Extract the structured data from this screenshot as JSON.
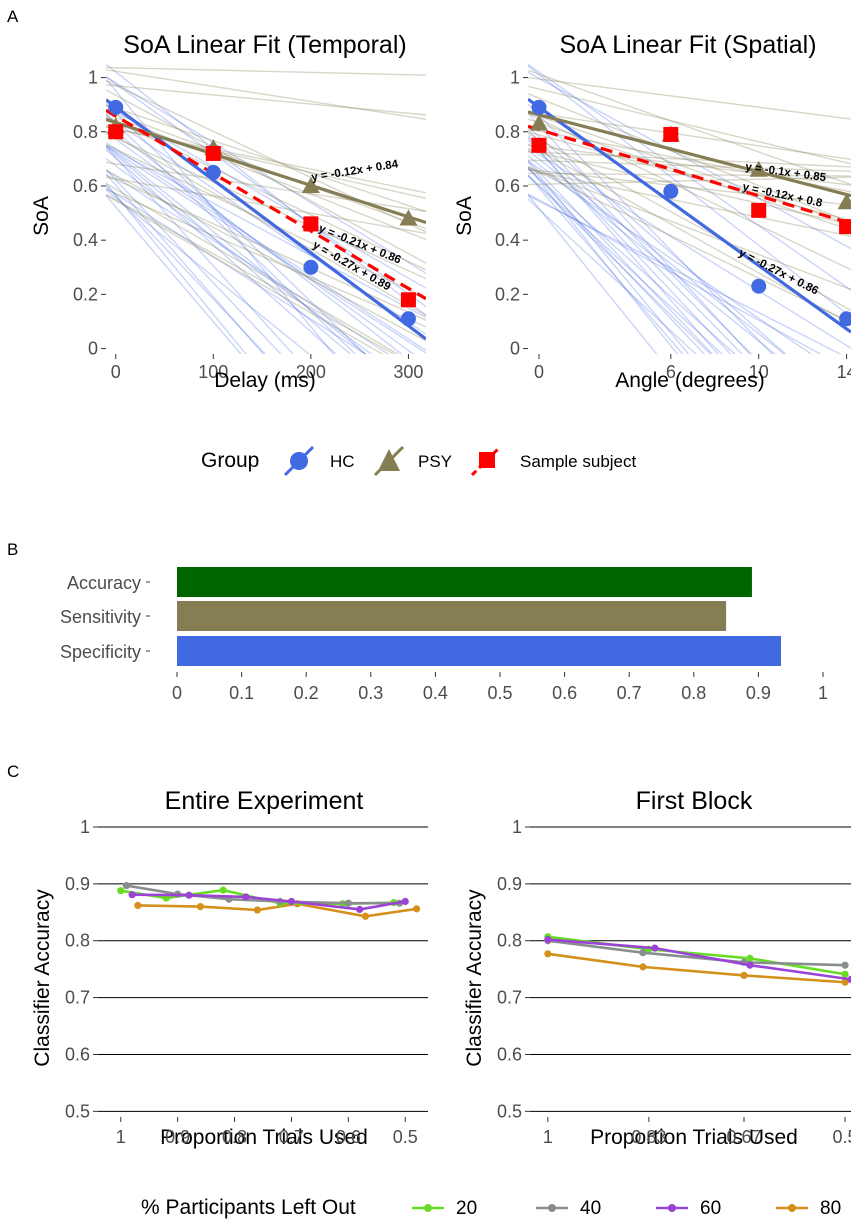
{
  "panels": {
    "a_label": "A",
    "b_label": "B",
    "c_label": "C"
  },
  "colors": {
    "hc": "#4169e1",
    "psy": "#857e55",
    "sample": "#ff0000",
    "accuracy_bar": "#006400",
    "l20": "#66dd22",
    "l40": "#888e8e",
    "l60": "#9a43d6",
    "l80": "#d4901a"
  },
  "chart_data": [
    {
      "id": "temporal",
      "type": "line",
      "title": "SoA Linear Fit (Temporal)",
      "xlabel": "Delay (ms)",
      "ylabel": "SoA",
      "x_ticks": [
        "0",
        "100",
        "200",
        "300"
      ],
      "y_ticks": [
        "0",
        "0.2",
        "0.4",
        "0.6",
        "0.8",
        "1"
      ],
      "xlim": [
        -10,
        318
      ],
      "ylim": [
        -0.02,
        1.05
      ],
      "grid": false,
      "legend_position": "bottom",
      "series": [
        {
          "name": "HC",
          "marker": "circle",
          "x": [
            0,
            100,
            200,
            300
          ],
          "y": [
            0.89,
            0.65,
            0.3,
            0.11
          ],
          "fit": {
            "slope_per_100": -0.27,
            "intercept": 0.89
          },
          "equation": "y = -0.27x + 0.89"
        },
        {
          "name": "PSY",
          "marker": "triangle",
          "x": [
            0,
            100,
            200,
            300
          ],
          "y": [
            0.82,
            0.74,
            0.6,
            0.48
          ],
          "fit": {
            "slope_per_100": -0.12,
            "intercept": 0.84
          },
          "equation": "y = -0.12x + 0.84"
        },
        {
          "name": "Sample subject",
          "marker": "square",
          "dashed": true,
          "x": [
            0,
            100,
            200,
            300
          ],
          "y": [
            0.8,
            0.72,
            0.46,
            0.18
          ],
          "fit": {
            "slope_per_100": -0.21,
            "intercept": 0.86
          },
          "equation": "y = -0.21x + 0.86"
        }
      ]
    },
    {
      "id": "spatial",
      "type": "line",
      "title": "SoA Linear Fit (Spatial)",
      "xlabel": "Angle (degrees)",
      "ylabel": "SoA",
      "x_ticks": [
        "0",
        "6",
        "10",
        "14"
      ],
      "y_ticks": [
        "0",
        "0.2",
        "0.4",
        "0.6",
        "0.8",
        "1"
      ],
      "xlim": [
        -0.5,
        14.2
      ],
      "ylim": [
        -0.02,
        1.05
      ],
      "grid": false,
      "legend_position": "bottom",
      "series": [
        {
          "name": "HC",
          "marker": "circle",
          "x": [
            0,
            6,
            10,
            14
          ],
          "y": [
            0.89,
            0.58,
            0.23,
            0.11
          ],
          "fit": {
            "slope_per_tick": -0.27,
            "intercept": 0.86
          },
          "equation": "y = -0.27x + 0.86"
        },
        {
          "name": "PSY",
          "marker": "triangle",
          "x": [
            0,
            6,
            10,
            14
          ],
          "y": [
            0.83,
            0.79,
            0.66,
            0.54
          ],
          "fit": {
            "slope_per_tick": -0.1,
            "intercept": 0.85
          },
          "equation": "y = -0.1x + 0.85"
        },
        {
          "name": "Sample subject",
          "marker": "square",
          "dashed": true,
          "x": [
            0,
            6,
            10,
            14
          ],
          "y": [
            0.75,
            0.79,
            0.51,
            0.45
          ],
          "fit": {
            "slope_per_tick": -0.12,
            "intercept": 0.8
          },
          "equation": "y = -0.12x + 0.8"
        }
      ]
    },
    {
      "id": "metrics",
      "type": "bar",
      "orientation": "horizontal",
      "categories": [
        "Accuracy",
        "Sensitivity",
        "Specificity"
      ],
      "values": [
        0.89,
        0.85,
        0.935
      ],
      "x_ticks": [
        "0",
        "0.1",
        "0.2",
        "0.3",
        "0.4",
        "0.5",
        "0.6",
        "0.7",
        "0.8",
        "0.9",
        "1"
      ],
      "xlim": [
        0,
        1
      ]
    },
    {
      "id": "entire",
      "type": "line",
      "title": "Entire Experiment",
      "xlabel": "Proportion Trials Used",
      "ylabel": "Classifier Accuracy",
      "x_ticks": [
        "1",
        "0.9",
        "0.8",
        "0.7",
        "0.6",
        "0.5"
      ],
      "y_ticks": [
        "0.5",
        "0.6",
        "0.7",
        "0.8",
        "0.9",
        "1"
      ],
      "xlim": [
        1.04,
        0.46
      ],
      "ylim": [
        0.49,
        1.0
      ],
      "grid": true,
      "series": [
        {
          "name": "20",
          "x": [
            1.0,
            0.92,
            0.82,
            0.72,
            0.61,
            0.52
          ],
          "y": [
            0.888,
            0.875,
            0.889,
            0.866,
            0.865,
            0.867
          ]
        },
        {
          "name": "40",
          "x": [
            0.99,
            0.9,
            0.81,
            0.72,
            0.6,
            0.51
          ],
          "y": [
            0.897,
            0.882,
            0.873,
            0.869,
            0.866,
            0.866
          ]
        },
        {
          "name": "60",
          "x": [
            0.98,
            0.88,
            0.78,
            0.7,
            0.58,
            0.5
          ],
          "y": [
            0.881,
            0.88,
            0.877,
            0.869,
            0.855,
            0.869
          ]
        },
        {
          "name": "80",
          "x": [
            0.97,
            0.86,
            0.76,
            0.69,
            0.57,
            0.48
          ],
          "y": [
            0.862,
            0.86,
            0.854,
            0.865,
            0.843,
            0.856
          ]
        }
      ]
    },
    {
      "id": "first",
      "type": "line",
      "title": "First Block",
      "xlabel": "Proportion Trials Used",
      "ylabel": "Classifier Accuracy",
      "x_ticks": [
        "1",
        "0.83",
        "0.67",
        "0.5"
      ],
      "y_ticks": [
        "0.5",
        "0.6",
        "0.7",
        "0.8",
        "0.9",
        "1"
      ],
      "x_tick_values": [
        1,
        0.83,
        0.67,
        0.5
      ],
      "xlim": [
        1.03,
        0.49
      ],
      "ylim": [
        0.49,
        1.0
      ],
      "grid": true,
      "series": [
        {
          "name": "20",
          "x": [
            1.0,
            0.83,
            0.66,
            0.5
          ],
          "y": [
            0.807,
            0.785,
            0.769,
            0.741
          ]
        },
        {
          "name": "40",
          "x": [
            1.0,
            0.84,
            0.67,
            0.5
          ],
          "y": [
            0.8,
            0.779,
            0.762,
            0.757
          ]
        },
        {
          "name": "60",
          "x": [
            1.0,
            0.82,
            0.66,
            0.49
          ],
          "y": [
            0.802,
            0.787,
            0.757,
            0.732
          ]
        },
        {
          "name": "80",
          "x": [
            1.0,
            0.84,
            0.67,
            0.5
          ],
          "y": [
            0.777,
            0.754,
            0.739,
            0.727
          ]
        }
      ]
    }
  ],
  "legend_top": {
    "title": "Group",
    "items": [
      "HC",
      "PSY",
      "Sample subject"
    ]
  },
  "legend_bottom": {
    "title": "% Participants Left Out",
    "items": [
      "20",
      "40",
      "60",
      "80"
    ]
  }
}
